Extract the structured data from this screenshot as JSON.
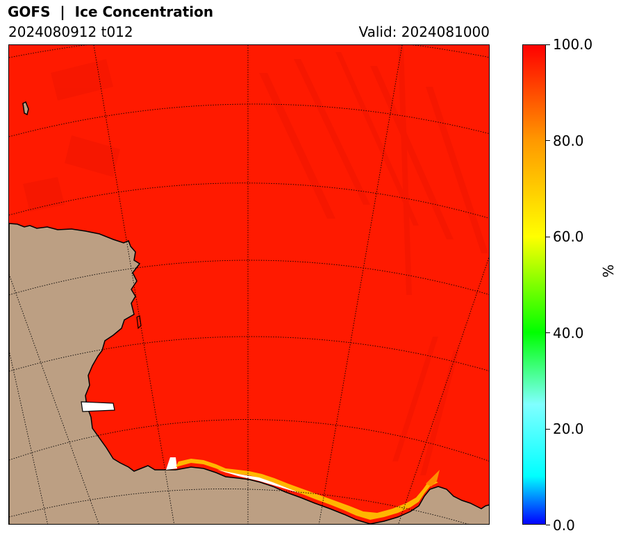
{
  "header": {
    "title": "GOFS  |  Ice Concentration",
    "run": "2024080912 t012",
    "valid": "Valid: 2024081000"
  },
  "colorbar": {
    "unit": "%",
    "ticks": [
      "0.0",
      "20.0",
      "40.0",
      "60.0",
      "80.0",
      "100.0"
    ],
    "range": [
      0,
      100
    ],
    "colors": {
      "0": "#0000ff",
      "10": "#00ffff",
      "25": "#80ffff",
      "40": "#00ff00",
      "60": "#ffff00",
      "80": "#ff9900",
      "100": "#ff0000"
    }
  },
  "map": {
    "land_color": "#bc9f83",
    "ice_color": "#ff1a00",
    "coastline_color": "#000000",
    "graticule": "dotted"
  }
}
